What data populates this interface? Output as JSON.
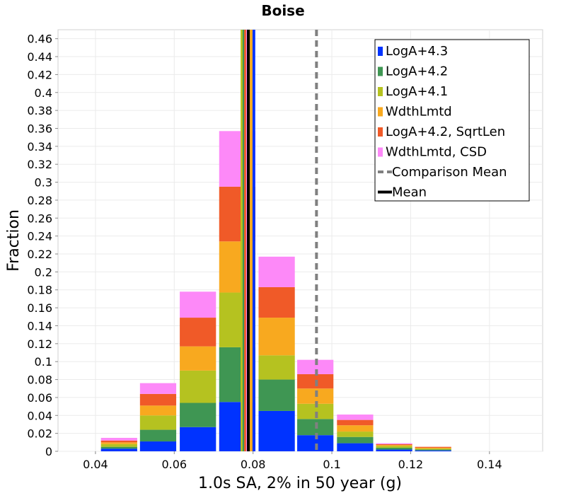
{
  "chart_data": {
    "type": "bar",
    "title": "Boise",
    "xlabel": "1.0s SA, 2% in 50 year (g)",
    "ylabel": "Fraction",
    "xlim": [
      0.0305,
      0.1535
    ],
    "ylim": [
      0,
      0.47
    ],
    "x_ticks": [
      "0.04",
      "0.06",
      "0.08",
      "0.1",
      "0.12",
      "0.14"
    ],
    "y_ticks": [
      "0",
      "0.02",
      "0.04",
      "0.06",
      "0.08",
      "0.1",
      "0.12",
      "0.14",
      "0.16",
      "0.18",
      "0.2",
      "0.22",
      "0.24",
      "0.26",
      "0.28",
      "0.3",
      "0.32",
      "0.34",
      "0.36",
      "0.38",
      "0.4",
      "0.42",
      "0.44",
      "0.46"
    ],
    "grid": true,
    "legend_position": "top-right",
    "bin_centers": [
      0.0364,
      0.046,
      0.0559,
      0.066,
      0.076,
      0.086,
      0.0958,
      0.1059,
      0.1158,
      0.1257,
      0.1355
    ],
    "bin_width": 0.0092,
    "series": [
      {
        "name": "LogA+4.3",
        "color": "#0033ff",
        "values": [
          0.0,
          0.003,
          0.011,
          0.027,
          0.055,
          0.045,
          0.018,
          0.009,
          0.002,
          0.001,
          0.0
        ]
      },
      {
        "name": "LogA+4.2",
        "color": "#3f9653",
        "values": [
          0.0,
          0.002,
          0.013,
          0.027,
          0.061,
          0.035,
          0.018,
          0.007,
          0.002,
          0.001,
          0.0
        ]
      },
      {
        "name": "LogA+4.1",
        "color": "#b5c220",
        "values": [
          0.0,
          0.003,
          0.016,
          0.036,
          0.061,
          0.027,
          0.017,
          0.006,
          0.002,
          0.001,
          0.0
        ]
      },
      {
        "name": "WdthLmtd",
        "color": "#f8a91f",
        "values": [
          0.0,
          0.002,
          0.011,
          0.027,
          0.057,
          0.042,
          0.017,
          0.007,
          0.001,
          0.001,
          0.0
        ]
      },
      {
        "name": "LogA+4.2, SqrtLen",
        "color": "#f05a28",
        "values": [
          0.0,
          0.002,
          0.013,
          0.032,
          0.061,
          0.034,
          0.016,
          0.006,
          0.001,
          0.001,
          0.0
        ]
      },
      {
        "name": "WdthLmtd, CSD",
        "color": "#fd89f8",
        "values": [
          0.0,
          0.003,
          0.012,
          0.029,
          0.062,
          0.034,
          0.016,
          0.006,
          0.001,
          0.0,
          0.0
        ]
      }
    ],
    "vertical_lines": [
      {
        "name": "LogA+4.1",
        "x": 0.0772,
        "color": "#b5c220",
        "style": "solid",
        "in_legend": false
      },
      {
        "name": "LogA+4.2",
        "x": 0.0777,
        "color": "#3f9653",
        "style": "solid",
        "in_legend": false
      },
      {
        "name": "LogA+4.2, SqrtLen",
        "x": 0.0781,
        "color": "#f05a28",
        "style": "solid",
        "in_legend": false
      },
      {
        "name": "WdthLmtd, CSD",
        "x": 0.0786,
        "color": "#fd89f8",
        "style": "solid",
        "in_legend": false
      },
      {
        "name": "LogA+4.3",
        "x": 0.0802,
        "color": "#0033ff",
        "style": "solid",
        "in_legend": false
      },
      {
        "name": "WdthLmtd",
        "x": 0.0795,
        "color": "#f8a91f",
        "style": "solid",
        "in_legend": false
      },
      {
        "name": "Comparison Mean",
        "x": 0.0961,
        "color": "#808080",
        "style": "dashed",
        "in_legend": true
      },
      {
        "name": "Mean",
        "x": 0.0788,
        "color": "#000000",
        "style": "solid",
        "in_legend": true
      }
    ]
  }
}
